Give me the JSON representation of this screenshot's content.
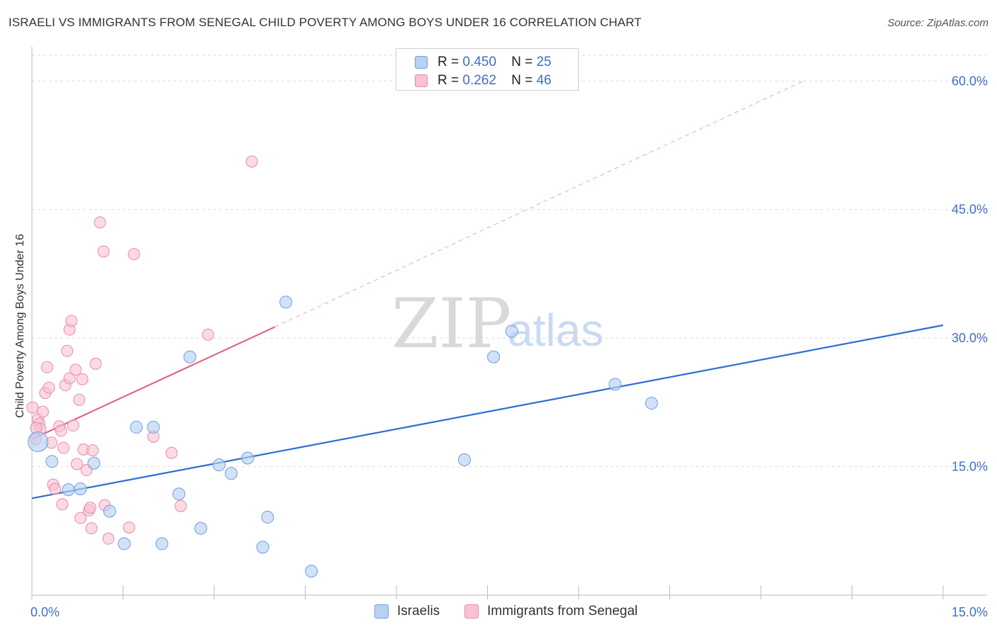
{
  "header": {
    "title": "ISRAELI VS IMMIGRANTS FROM SENEGAL CHILD POVERTY AMONG BOYS UNDER 16 CORRELATION CHART",
    "source": "Source: ZipAtlas.com"
  },
  "watermark": {
    "zip": "ZIP",
    "atlas": "atlas"
  },
  "legend": {
    "rows": [
      {
        "r_label": "R =",
        "r_value": "0.450",
        "n_label": "N =",
        "n_value": "25"
      },
      {
        "r_label": "R =",
        "r_value": "0.262",
        "n_label": "N =",
        "n_value": "46"
      }
    ]
  },
  "colors": {
    "israelis_fill": "#b8d1f3",
    "israelis_stroke": "#6f9edc",
    "israelis_line": "#2b6fcf",
    "senegal_fill": "#f9c2d2",
    "senegal_stroke": "#e98aa8",
    "senegal_line": "#e0678f",
    "grid": "#dddddd",
    "tick_text": "#3f6fc4"
  },
  "chart_data": {
    "type": "scatter",
    "title": "ISRAELI VS IMMIGRANTS FROM SENEGAL CHILD POVERTY AMONG BOYS UNDER 16 CORRELATION CHART",
    "xlabel": "",
    "ylabel": "Child Poverty Among Boys Under 16",
    "xlim": [
      0,
      15
    ],
    "ylim": [
      0,
      63
    ],
    "x_tick_labels": [
      "0.0%",
      "15.0%"
    ],
    "y_ticks": [
      15,
      30,
      45,
      60
    ],
    "y_tick_labels": [
      "15.0%",
      "30.0%",
      "45.0%",
      "60.0%"
    ],
    "grid": true,
    "legend_position": "top-center",
    "series": [
      {
        "name": "Israelis",
        "r": 0.45,
        "n": 25,
        "points": [
          [
            0.1,
            17.9
          ],
          [
            0.33,
            15.6
          ],
          [
            0.6,
            12.3
          ],
          [
            0.8,
            12.4
          ],
          [
            1.02,
            15.4
          ],
          [
            1.28,
            9.8
          ],
          [
            1.52,
            6.0
          ],
          [
            1.72,
            19.6
          ],
          [
            2.0,
            19.6
          ],
          [
            2.14,
            6.0
          ],
          [
            2.42,
            11.8
          ],
          [
            2.6,
            27.8
          ],
          [
            2.78,
            7.8
          ],
          [
            3.08,
            15.2
          ],
          [
            3.28,
            14.2
          ],
          [
            3.55,
            16.0
          ],
          [
            3.8,
            5.6
          ],
          [
            3.88,
            9.1
          ],
          [
            4.18,
            34.2
          ],
          [
            4.6,
            2.8
          ],
          [
            7.12,
            15.8
          ],
          [
            7.6,
            27.8
          ],
          [
            7.9,
            30.8
          ],
          [
            9.6,
            24.6
          ],
          [
            10.2,
            22.4
          ]
        ],
        "trend": {
          "x": [
            0,
            15
          ],
          "y": [
            11.3,
            31.5
          ]
        }
      },
      {
        "name": "Immigrants from Senegal",
        "r": 0.262,
        "n": 46,
        "points": [
          [
            0.01,
            21.9
          ],
          [
            0.06,
            18.2
          ],
          [
            0.1,
            20.5
          ],
          [
            0.12,
            20.0
          ],
          [
            0.14,
            19.4
          ],
          [
            0.18,
            21.4
          ],
          [
            0.22,
            23.6
          ],
          [
            0.25,
            26.6
          ],
          [
            0.28,
            24.2
          ],
          [
            0.32,
            17.8
          ],
          [
            0.35,
            12.9
          ],
          [
            0.38,
            12.4
          ],
          [
            0.45,
            19.7
          ],
          [
            0.48,
            19.2
          ],
          [
            0.5,
            10.6
          ],
          [
            0.52,
            17.2
          ],
          [
            0.55,
            24.5
          ],
          [
            0.58,
            28.5
          ],
          [
            0.62,
            25.3
          ],
          [
            0.62,
            31.0
          ],
          [
            0.65,
            32.0
          ],
          [
            0.68,
            19.8
          ],
          [
            0.72,
            26.3
          ],
          [
            0.74,
            15.3
          ],
          [
            0.78,
            22.8
          ],
          [
            0.8,
            9.0
          ],
          [
            0.83,
            25.2
          ],
          [
            0.85,
            17.0
          ],
          [
            0.9,
            14.6
          ],
          [
            0.94,
            9.9
          ],
          [
            0.96,
            10.2
          ],
          [
            0.98,
            7.8
          ],
          [
            1.0,
            16.9
          ],
          [
            1.05,
            27.0
          ],
          [
            1.12,
            43.5
          ],
          [
            1.18,
            40.1
          ],
          [
            1.2,
            10.5
          ],
          [
            1.26,
            6.6
          ],
          [
            1.6,
            7.9
          ],
          [
            1.68,
            39.8
          ],
          [
            2.0,
            18.5
          ],
          [
            2.3,
            16.6
          ],
          [
            2.45,
            10.4
          ],
          [
            2.9,
            30.4
          ],
          [
            3.62,
            50.6
          ],
          [
            0.07,
            19.5
          ]
        ],
        "trend_solid": {
          "x": [
            0,
            4.0
          ],
          "y": [
            18.2,
            31.3
          ]
        },
        "trend_dashed": {
          "x": [
            4.0,
            12.7
          ],
          "y": [
            31.3,
            60.0
          ]
        }
      }
    ]
  },
  "bottom_legend": {
    "israelis_label": "Israelis",
    "senegal_label": "Immigrants from Senegal"
  }
}
